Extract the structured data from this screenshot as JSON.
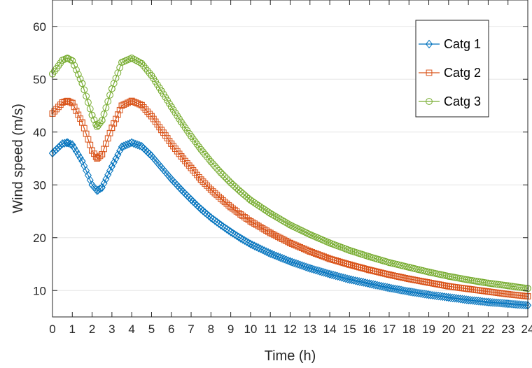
{
  "chart_data": {
    "type": "line",
    "xlabel": "Time (h)",
    "ylabel": "Wind speed (m/s)",
    "xlim": [
      0,
      24
    ],
    "ylim": [
      5,
      65
    ],
    "xticks": [
      0,
      1,
      2,
      3,
      4,
      5,
      6,
      7,
      8,
      9,
      10,
      11,
      12,
      13,
      14,
      15,
      16,
      17,
      18,
      19,
      20,
      21,
      22,
      23,
      24
    ],
    "yticks": [
      10,
      20,
      30,
      40,
      50,
      60
    ],
    "grid": "horizontal",
    "legend_position": "top-right",
    "x": [
      0,
      0.5,
      0.75,
      1,
      1.5,
      2,
      2.25,
      2.5,
      3,
      3.5,
      4,
      4.5,
      5,
      5.5,
      6,
      6.5,
      7,
      7.5,
      8,
      8.5,
      9,
      9.5,
      10,
      11,
      12,
      13,
      14,
      15,
      16,
      17,
      18,
      19,
      20,
      21,
      22,
      23,
      24
    ],
    "series": [
      {
        "name": "Catg 1",
        "color": "#0072BD",
        "marker": "diamond",
        "values": [
          36,
          37.8,
          38,
          37.6,
          34.5,
          30,
          28.9,
          29.5,
          33.5,
          37.2,
          38,
          37.3,
          35.5,
          33.3,
          31.1,
          29.1,
          27.2,
          25.4,
          23.8,
          22.4,
          21.1,
          19.9,
          18.8,
          17,
          15.5,
          14.2,
          13.1,
          12.1,
          11.3,
          10.5,
          9.8,
          9.2,
          8.7,
          8.2,
          7.8,
          7.5,
          7.2
        ]
      },
      {
        "name": "Catg 2",
        "color": "#D95319",
        "marker": "square",
        "values": [
          43.5,
          45.6,
          45.9,
          45.5,
          41.8,
          36.5,
          35,
          35.8,
          40.8,
          45,
          45.9,
          45.1,
          43,
          40.4,
          37.8,
          35.4,
          33.2,
          31,
          29.1,
          27.4,
          25.8,
          24.4,
          23.1,
          20.9,
          19,
          17.4,
          16,
          14.9,
          13.9,
          13,
          12.2,
          11.5,
          10.8,
          10.3,
          9.8,
          9.3,
          8.9
        ]
      },
      {
        "name": "Catg 3",
        "color": "#77AC30",
        "marker": "circle",
        "values": [
          51,
          53.6,
          54,
          53.5,
          49.2,
          43.2,
          41,
          42.2,
          48.2,
          53.2,
          54,
          53,
          50.7,
          47.8,
          44.8,
          41.9,
          39.2,
          36.7,
          34.4,
          32.3,
          30.4,
          28.7,
          27.1,
          24.6,
          22.4,
          20.6,
          19,
          17.6,
          16.4,
          15.3,
          14.4,
          13.5,
          12.7,
          12,
          11.4,
          10.9,
          10.4
        ]
      }
    ]
  }
}
